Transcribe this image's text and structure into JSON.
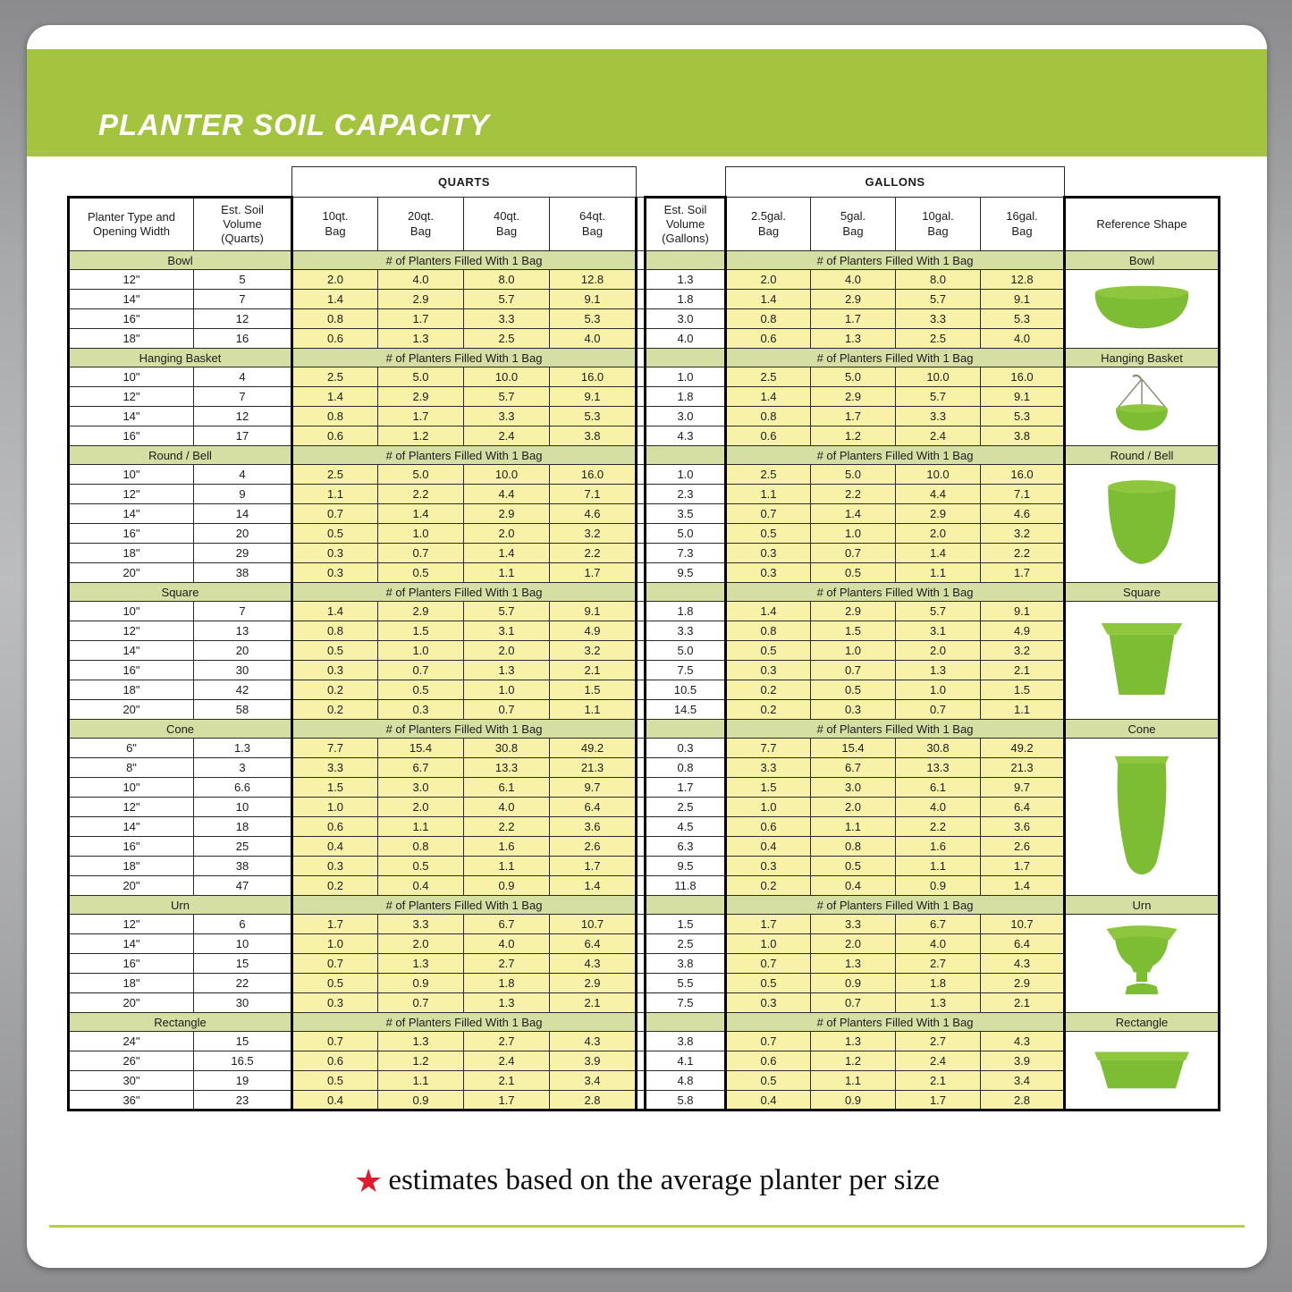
{
  "colors": {
    "banner_green": "#a4c33f",
    "band_green": "#d5dfa3",
    "cell_yellow": "#f7f2a8",
    "icon_green": "#7dbd33",
    "icon_green_light": "#8ec63e",
    "footer_star_red": "#e11b2e",
    "rule_green": "#b9cc52"
  },
  "footer": {
    "note": "estimates based on the average planter per size"
  },
  "chart_data": {
    "type": "table",
    "title": "PLANTER SOIL CAPACITY",
    "group_headers": {
      "quarts": "QUARTS",
      "gallons": "GALLONS"
    },
    "col_headers": {
      "type": "Planter Type and\nOpening Width",
      "qvol": "Est. Soil\nVolume\n(Quarts)",
      "qbags": [
        "10qt.\nBag",
        "20qt.\nBag",
        "40qt.\nBag",
        "64qt.\nBag"
      ],
      "gvol": "Est. Soil\nVolume\n(Gallons)",
      "gbags": [
        "2.5gal.\nBag",
        "5gal.\nBag",
        "10gal.\nBag",
        "16gal.\nBag"
      ],
      "ref": "Reference Shape"
    },
    "band_label": "# of Planters Filled With 1 Bag",
    "sections": [
      {
        "name": "Bowl",
        "icon": "bowl",
        "rows": [
          {
            "width": "12\"",
            "qvol": "5",
            "gvol": "1.3",
            "bags": [
              "2.0",
              "4.0",
              "8.0",
              "12.8"
            ]
          },
          {
            "width": "14\"",
            "qvol": "7",
            "gvol": "1.8",
            "bags": [
              "1.4",
              "2.9",
              "5.7",
              "9.1"
            ]
          },
          {
            "width": "16\"",
            "qvol": "12",
            "gvol": "3.0",
            "bags": [
              "0.8",
              "1.7",
              "3.3",
              "5.3"
            ]
          },
          {
            "width": "18\"",
            "qvol": "16",
            "gvol": "4.0",
            "bags": [
              "0.6",
              "1.3",
              "2.5",
              "4.0"
            ]
          }
        ]
      },
      {
        "name": "Hanging Basket",
        "icon": "hanging-basket",
        "rows": [
          {
            "width": "10\"",
            "qvol": "4",
            "gvol": "1.0",
            "bags": [
              "2.5",
              "5.0",
              "10.0",
              "16.0"
            ]
          },
          {
            "width": "12\"",
            "qvol": "7",
            "gvol": "1.8",
            "bags": [
              "1.4",
              "2.9",
              "5.7",
              "9.1"
            ]
          },
          {
            "width": "14\"",
            "qvol": "12",
            "gvol": "3.0",
            "bags": [
              "0.8",
              "1.7",
              "3.3",
              "5.3"
            ]
          },
          {
            "width": "16\"",
            "qvol": "17",
            "gvol": "4.3",
            "bags": [
              "0.6",
              "1.2",
              "2.4",
              "3.8"
            ]
          }
        ]
      },
      {
        "name": "Round / Bell",
        "icon": "round-bell",
        "rows": [
          {
            "width": "10\"",
            "qvol": "4",
            "gvol": "1.0",
            "bags": [
              "2.5",
              "5.0",
              "10.0",
              "16.0"
            ]
          },
          {
            "width": "12\"",
            "qvol": "9",
            "gvol": "2.3",
            "bags": [
              "1.1",
              "2.2",
              "4.4",
              "7.1"
            ]
          },
          {
            "width": "14\"",
            "qvol": "14",
            "gvol": "3.5",
            "bags": [
              "0.7",
              "1.4",
              "2.9",
              "4.6"
            ]
          },
          {
            "width": "16\"",
            "qvol": "20",
            "gvol": "5.0",
            "bags": [
              "0.5",
              "1.0",
              "2.0",
              "3.2"
            ]
          },
          {
            "width": "18\"",
            "qvol": "29",
            "gvol": "7.3",
            "bags": [
              "0.3",
              "0.7",
              "1.4",
              "2.2"
            ]
          },
          {
            "width": "20\"",
            "qvol": "38",
            "gvol": "9.5",
            "bags": [
              "0.3",
              "0.5",
              "1.1",
              "1.7"
            ]
          }
        ]
      },
      {
        "name": "Square",
        "icon": "square",
        "rows": [
          {
            "width": "10\"",
            "qvol": "7",
            "gvol": "1.8",
            "bags": [
              "1.4",
              "2.9",
              "5.7",
              "9.1"
            ]
          },
          {
            "width": "12\"",
            "qvol": "13",
            "gvol": "3.3",
            "bags": [
              "0.8",
              "1.5",
              "3.1",
              "4.9"
            ]
          },
          {
            "width": "14\"",
            "qvol": "20",
            "gvol": "5.0",
            "bags": [
              "0.5",
              "1.0",
              "2.0",
              "3.2"
            ]
          },
          {
            "width": "16\"",
            "qvol": "30",
            "gvol": "7.5",
            "bags": [
              "0.3",
              "0.7",
              "1.3",
              "2.1"
            ]
          },
          {
            "width": "18\"",
            "qvol": "42",
            "gvol": "10.5",
            "bags": [
              "0.2",
              "0.5",
              "1.0",
              "1.5"
            ]
          },
          {
            "width": "20\"",
            "qvol": "58",
            "gvol": "14.5",
            "bags": [
              "0.2",
              "0.3",
              "0.7",
              "1.1"
            ]
          }
        ]
      },
      {
        "name": "Cone",
        "icon": "cone",
        "rows": [
          {
            "width": "6\"",
            "qvol": "1.3",
            "gvol": "0.3",
            "bags": [
              "7.7",
              "15.4",
              "30.8",
              "49.2"
            ]
          },
          {
            "width": "8\"",
            "qvol": "3",
            "gvol": "0.8",
            "bags": [
              "3.3",
              "6.7",
              "13.3",
              "21.3"
            ]
          },
          {
            "width": "10\"",
            "qvol": "6.6",
            "gvol": "1.7",
            "bags": [
              "1.5",
              "3.0",
              "6.1",
              "9.7"
            ]
          },
          {
            "width": "12\"",
            "qvol": "10",
            "gvol": "2.5",
            "bags": [
              "1.0",
              "2.0",
              "4.0",
              "6.4"
            ]
          },
          {
            "width": "14\"",
            "qvol": "18",
            "gvol": "4.5",
            "bags": [
              "0.6",
              "1.1",
              "2.2",
              "3.6"
            ]
          },
          {
            "width": "16\"",
            "qvol": "25",
            "gvol": "6.3",
            "bags": [
              "0.4",
              "0.8",
              "1.6",
              "2.6"
            ]
          },
          {
            "width": "18\"",
            "qvol": "38",
            "gvol": "9.5",
            "bags": [
              "0.3",
              "0.5",
              "1.1",
              "1.7"
            ]
          },
          {
            "width": "20\"",
            "qvol": "47",
            "gvol": "11.8",
            "bags": [
              "0.2",
              "0.4",
              "0.9",
              "1.4"
            ]
          }
        ]
      },
      {
        "name": "Urn",
        "icon": "urn",
        "rows": [
          {
            "width": "12\"",
            "qvol": "6",
            "gvol": "1.5",
            "bags": [
              "1.7",
              "3.3",
              "6.7",
              "10.7"
            ]
          },
          {
            "width": "14\"",
            "qvol": "10",
            "gvol": "2.5",
            "bags": [
              "1.0",
              "2.0",
              "4.0",
              "6.4"
            ]
          },
          {
            "width": "16\"",
            "qvol": "15",
            "gvol": "3.8",
            "bags": [
              "0.7",
              "1.3",
              "2.7",
              "4.3"
            ]
          },
          {
            "width": "18\"",
            "qvol": "22",
            "gvol": "5.5",
            "bags": [
              "0.5",
              "0.9",
              "1.8",
              "2.9"
            ]
          },
          {
            "width": "20\"",
            "qvol": "30",
            "gvol": "7.5",
            "bags": [
              "0.3",
              "0.7",
              "1.3",
              "2.1"
            ]
          }
        ]
      },
      {
        "name": "Rectangle",
        "icon": "rectangle",
        "rows": [
          {
            "width": "24\"",
            "qvol": "15",
            "gvol": "3.8",
            "bags": [
              "0.7",
              "1.3",
              "2.7",
              "4.3"
            ]
          },
          {
            "width": "26\"",
            "qvol": "16.5",
            "gvol": "4.1",
            "bags": [
              "0.6",
              "1.2",
              "2.4",
              "3.9"
            ]
          },
          {
            "width": "30\"",
            "qvol": "19",
            "gvol": "4.8",
            "bags": [
              "0.5",
              "1.1",
              "2.1",
              "3.4"
            ]
          },
          {
            "width": "36\"",
            "qvol": "23",
            "gvol": "5.8",
            "bags": [
              "0.4",
              "0.9",
              "1.7",
              "2.8"
            ]
          }
        ]
      }
    ]
  }
}
